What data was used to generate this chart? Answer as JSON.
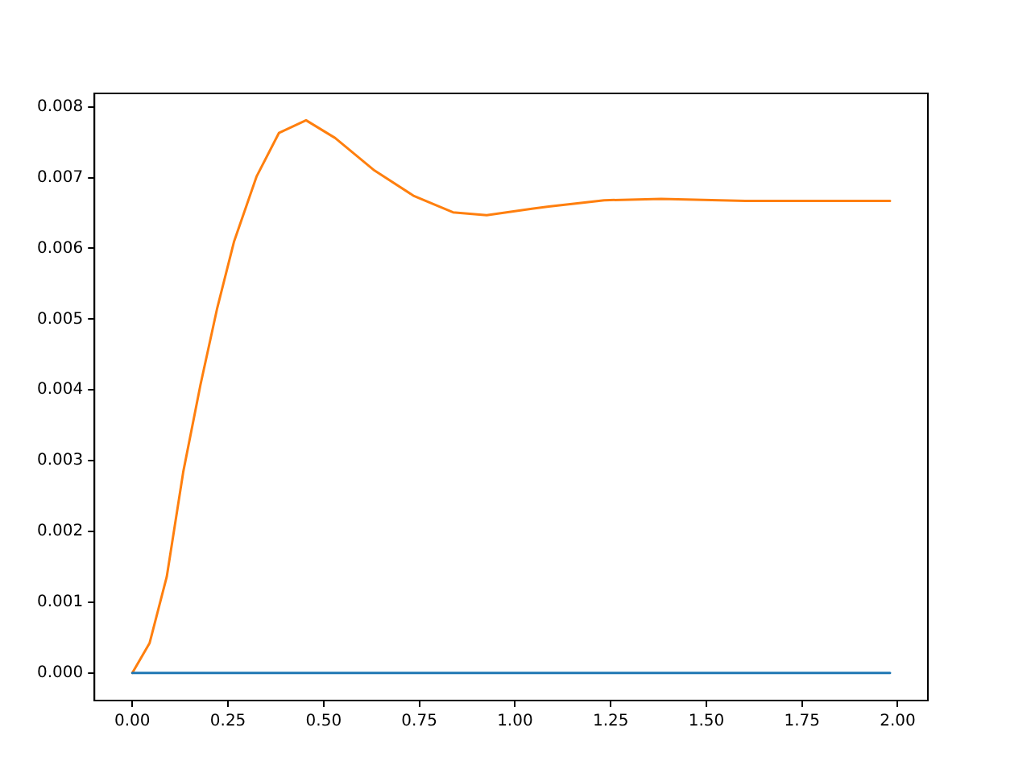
{
  "chart_data": {
    "type": "line",
    "xlim": [
      -0.099,
      2.079
    ],
    "ylim": [
      -0.00039,
      0.00819
    ],
    "xticks": [
      {
        "value": 0,
        "label": "0.00"
      },
      {
        "value": 0.25,
        "label": "0.25"
      },
      {
        "value": 0.5,
        "label": "0.50"
      },
      {
        "value": 0.75,
        "label": "0.75"
      },
      {
        "value": 1,
        "label": "1.00"
      },
      {
        "value": 1.25,
        "label": "1.25"
      },
      {
        "value": 1.5,
        "label": "1.50"
      },
      {
        "value": 1.75,
        "label": "1.75"
      },
      {
        "value": 2,
        "label": "2.00"
      }
    ],
    "yticks": [
      {
        "value": 0,
        "label": "0.000"
      },
      {
        "value": 0.001,
        "label": "0.001"
      },
      {
        "value": 0.002,
        "label": "0.002"
      },
      {
        "value": 0.003,
        "label": "0.003"
      },
      {
        "value": 0.004,
        "label": "0.004"
      },
      {
        "value": 0.005,
        "label": "0.005"
      },
      {
        "value": 0.006,
        "label": "0.006"
      },
      {
        "value": 0.007,
        "label": "0.007"
      },
      {
        "value": 0.008,
        "label": "0.008"
      }
    ],
    "grid": false,
    "legend": false,
    "marker": "none",
    "line_style": "solid",
    "series": [
      {
        "color": "#1f77b4",
        "x": [
          0,
          1.98
        ],
        "values": [
          0,
          0
        ]
      },
      {
        "color": "#ff7f0e",
        "x": [
          0,
          0.045,
          0.09,
          0.133,
          0.178,
          0.222,
          0.266,
          0.325,
          0.383,
          0.454,
          0.53,
          0.633,
          0.736,
          0.838,
          0.926,
          1.044,
          1.088,
          1.233,
          1.382,
          1.602,
          1.98
        ],
        "values": [
          0,
          0.00042,
          0.00136,
          0.00284,
          0.00407,
          0.00516,
          0.0061,
          0.00702,
          0.00763,
          0.00781,
          0.00756,
          0.0071,
          0.00674,
          0.00651,
          0.00647,
          0.00656,
          0.00659,
          0.00668,
          0.0067,
          0.00667,
          0.00667
        ]
      }
    ]
  }
}
